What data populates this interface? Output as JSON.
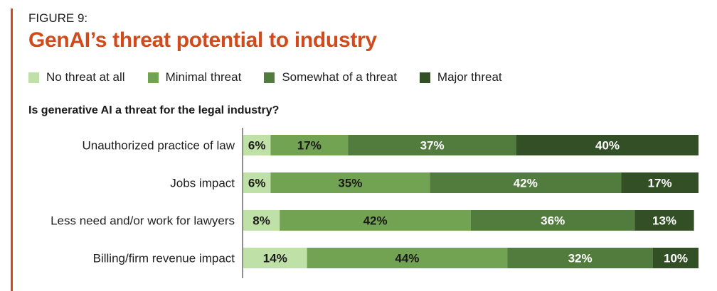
{
  "figure_label": "FIGURE 9:",
  "title": "GenAI’s threat potential to industry",
  "question": "Is generative AI a threat for the legal industry?",
  "colors": {
    "accent": "#d04a1c",
    "no_threat": "#bfe0a6",
    "minimal": "#72a353",
    "somewhat": "#527c3d",
    "major": "#324f25"
  },
  "chart_data": {
    "type": "bar",
    "orientation": "horizontal",
    "stacked": true,
    "categories": [
      "Unauthorized practice of law",
      "Jobs impact",
      "Less need and/or work for lawyers",
      "Billing/firm revenue impact"
    ],
    "series": [
      {
        "name": "No threat at all",
        "color": "#bfe0a6",
        "label_color": "#1a1a1a",
        "values": [
          6,
          6,
          8,
          14
        ]
      },
      {
        "name": "Minimal threat",
        "color": "#72a353",
        "label_color": "#1a1a1a",
        "values": [
          17,
          35,
          42,
          44
        ]
      },
      {
        "name": "Somewhat of a threat",
        "color": "#527c3d",
        "label_color": "#ffffff",
        "values": [
          37,
          42,
          36,
          32
        ]
      },
      {
        "name": "Major threat",
        "color": "#324f25",
        "label_color": "#ffffff",
        "values": [
          40,
          17,
          13,
          10
        ]
      }
    ],
    "unit": "%",
    "xlim": [
      0,
      100
    ],
    "legend_position": "top-left",
    "grid": false
  }
}
